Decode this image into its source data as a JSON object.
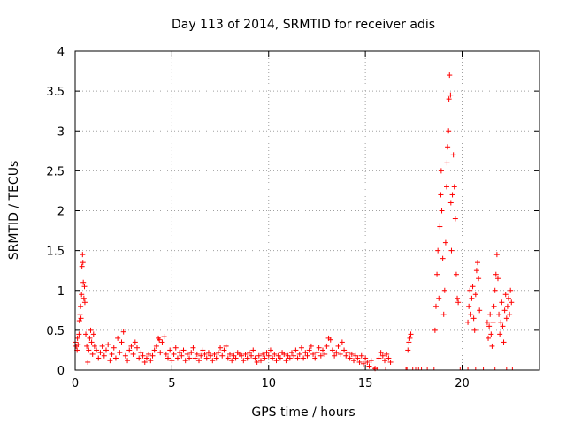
{
  "chart_data": {
    "type": "scatter",
    "title": "Day 113 of 2014, SRMTID for receiver adis",
    "xlabel": "GPS time / hours",
    "ylabel": "SRMTID / TECUs",
    "xlim": [
      0,
      24
    ],
    "ylim": [
      0,
      4
    ],
    "grid": true,
    "marker": "+",
    "x_ticks": [
      0,
      5,
      10,
      15,
      20
    ],
    "x_tick_labels": [
      "0",
      "5",
      "10",
      "15",
      "20"
    ],
    "y_ticks": [
      0,
      0.5,
      1,
      1.5,
      2,
      2.5,
      3,
      3.5,
      4
    ],
    "y_tick_labels": [
      "0",
      "0.5",
      "1",
      "1.5",
      "2",
      "2.5",
      "3",
      "3.5",
      "4"
    ],
    "series": [
      {
        "name": "SRMTID",
        "color": "#ff0000",
        "points": [
          [
            0.0,
            0.35
          ],
          [
            0.05,
            0.3
          ],
          [
            0.1,
            0.25
          ],
          [
            0.12,
            0.4
          ],
          [
            0.15,
            0.32
          ],
          [
            0.2,
            0.45
          ],
          [
            0.22,
            0.62
          ],
          [
            0.25,
            0.7
          ],
          [
            0.28,
            0.8
          ],
          [
            0.3,
            0.65
          ],
          [
            0.33,
            0.95
          ],
          [
            0.35,
            1.3
          ],
          [
            0.38,
            1.45
          ],
          [
            0.4,
            1.35
          ],
          [
            0.42,
            1.1
          ],
          [
            0.45,
            0.9
          ],
          [
            0.48,
            1.05
          ],
          [
            0.5,
            0.85
          ],
          [
            0.55,
            0.45
          ],
          [
            0.6,
            0.3
          ],
          [
            0.65,
            0.1
          ],
          [
            0.7,
            0.25
          ],
          [
            0.75,
            0.4
          ],
          [
            0.8,
            0.5
          ],
          [
            0.85,
            0.35
          ],
          [
            0.9,
            0.2
          ],
          [
            0.95,
            0.45
          ],
          [
            1.0,
            0.3
          ],
          [
            1.1,
            0.25
          ],
          [
            1.2,
            0.15
          ],
          [
            1.3,
            0.22
          ],
          [
            1.4,
            0.3
          ],
          [
            1.5,
            0.18
          ],
          [
            1.6,
            0.25
          ],
          [
            1.7,
            0.32
          ],
          [
            1.8,
            0.12
          ],
          [
            1.9,
            0.2
          ],
          [
            2.0,
            0.28
          ],
          [
            2.1,
            0.15
          ],
          [
            2.2,
            0.4
          ],
          [
            2.3,
            0.22
          ],
          [
            2.4,
            0.35
          ],
          [
            2.5,
            0.48
          ],
          [
            2.6,
            0.18
          ],
          [
            2.7,
            0.12
          ],
          [
            2.8,
            0.25
          ],
          [
            2.9,
            0.3
          ],
          [
            3.0,
            0.2
          ],
          [
            3.1,
            0.35
          ],
          [
            3.2,
            0.28
          ],
          [
            3.3,
            0.15
          ],
          [
            3.4,
            0.22
          ],
          [
            3.5,
            0.18
          ],
          [
            3.6,
            0.1
          ],
          [
            3.7,
            0.15
          ],
          [
            3.8,
            0.2
          ],
          [
            3.9,
            0.12
          ],
          [
            4.0,
            0.18
          ],
          [
            4.1,
            0.25
          ],
          [
            4.2,
            0.3
          ],
          [
            4.3,
            0.4
          ],
          [
            4.35,
            0.38
          ],
          [
            4.4,
            0.22
          ],
          [
            4.5,
            0.35
          ],
          [
            4.6,
            0.42
          ],
          [
            4.7,
            0.2
          ],
          [
            4.8,
            0.15
          ],
          [
            4.9,
            0.25
          ],
          [
            5.0,
            0.12
          ],
          [
            5.1,
            0.2
          ],
          [
            5.2,
            0.28
          ],
          [
            5.3,
            0.15
          ],
          [
            5.4,
            0.22
          ],
          [
            5.5,
            0.18
          ],
          [
            5.6,
            0.25
          ],
          [
            5.7,
            0.12
          ],
          [
            5.8,
            0.2
          ],
          [
            5.9,
            0.15
          ],
          [
            6.0,
            0.22
          ],
          [
            6.1,
            0.28
          ],
          [
            6.2,
            0.15
          ],
          [
            6.3,
            0.2
          ],
          [
            6.4,
            0.12
          ],
          [
            6.5,
            0.18
          ],
          [
            6.6,
            0.25
          ],
          [
            6.7,
            0.2
          ],
          [
            6.8,
            0.15
          ],
          [
            6.9,
            0.22
          ],
          [
            7.0,
            0.18
          ],
          [
            7.1,
            0.12
          ],
          [
            7.2,
            0.2
          ],
          [
            7.3,
            0.15
          ],
          [
            7.4,
            0.22
          ],
          [
            7.5,
            0.28
          ],
          [
            7.6,
            0.18
          ],
          [
            7.7,
            0.25
          ],
          [
            7.8,
            0.3
          ],
          [
            7.9,
            0.15
          ],
          [
            8.0,
            0.2
          ],
          [
            8.1,
            0.12
          ],
          [
            8.2,
            0.18
          ],
          [
            8.3,
            0.15
          ],
          [
            8.4,
            0.22
          ],
          [
            8.5,
            0.2
          ],
          [
            8.6,
            0.18
          ],
          [
            8.7,
            0.12
          ],
          [
            8.8,
            0.2
          ],
          [
            8.9,
            0.15
          ],
          [
            9.0,
            0.22
          ],
          [
            9.1,
            0.18
          ],
          [
            9.2,
            0.25
          ],
          [
            9.3,
            0.15
          ],
          [
            9.4,
            0.1
          ],
          [
            9.5,
            0.18
          ],
          [
            9.6,
            0.12
          ],
          [
            9.7,
            0.2
          ],
          [
            9.8,
            0.15
          ],
          [
            9.9,
            0.22
          ],
          [
            10.0,
            0.18
          ],
          [
            10.1,
            0.25
          ],
          [
            10.2,
            0.15
          ],
          [
            10.3,
            0.2
          ],
          [
            10.4,
            0.12
          ],
          [
            10.5,
            0.18
          ],
          [
            10.6,
            0.15
          ],
          [
            10.7,
            0.22
          ],
          [
            10.8,
            0.2
          ],
          [
            10.9,
            0.12
          ],
          [
            11.0,
            0.18
          ],
          [
            11.1,
            0.15
          ],
          [
            11.2,
            0.22
          ],
          [
            11.3,
            0.18
          ],
          [
            11.4,
            0.25
          ],
          [
            11.5,
            0.15
          ],
          [
            11.6,
            0.2
          ],
          [
            11.7,
            0.28
          ],
          [
            11.8,
            0.15
          ],
          [
            11.9,
            0.22
          ],
          [
            12.0,
            0.18
          ],
          [
            12.1,
            0.25
          ],
          [
            12.2,
            0.3
          ],
          [
            12.3,
            0.2
          ],
          [
            12.4,
            0.15
          ],
          [
            12.5,
            0.22
          ],
          [
            12.6,
            0.28
          ],
          [
            12.7,
            0.18
          ],
          [
            12.8,
            0.25
          ],
          [
            12.9,
            0.2
          ],
          [
            13.0,
            0.3
          ],
          [
            13.1,
            0.4
          ],
          [
            13.2,
            0.38
          ],
          [
            13.3,
            0.25
          ],
          [
            13.4,
            0.18
          ],
          [
            13.5,
            0.22
          ],
          [
            13.6,
            0.3
          ],
          [
            13.7,
            0.2
          ],
          [
            13.8,
            0.35
          ],
          [
            13.9,
            0.25
          ],
          [
            14.0,
            0.18
          ],
          [
            14.1,
            0.22
          ],
          [
            14.2,
            0.15
          ],
          [
            14.3,
            0.2
          ],
          [
            14.4,
            0.12
          ],
          [
            14.5,
            0.18
          ],
          [
            14.6,
            0.15
          ],
          [
            14.7,
            0.1
          ],
          [
            14.8,
            0.18
          ],
          [
            14.9,
            0.08
          ],
          [
            15.0,
            0.15
          ],
          [
            15.1,
            0.1
          ],
          [
            15.2,
            0.05
          ],
          [
            15.3,
            0.12
          ],
          [
            15.5,
            0.02
          ],
          [
            15.7,
            0.15
          ],
          [
            15.8,
            0.22
          ],
          [
            15.9,
            0.18
          ],
          [
            16.0,
            0.12
          ],
          [
            16.1,
            0.2
          ],
          [
            16.2,
            0.15
          ],
          [
            16.3,
            0.1
          ],
          [
            17.2,
            0.25
          ],
          [
            17.25,
            0.35
          ],
          [
            17.3,
            0.4
          ],
          [
            17.35,
            0.45
          ],
          [
            18.6,
            0.5
          ],
          [
            18.65,
            0.8
          ],
          [
            18.7,
            1.2
          ],
          [
            18.75,
            1.5
          ],
          [
            18.8,
            0.9
          ],
          [
            18.85,
            1.8
          ],
          [
            18.9,
            2.2
          ],
          [
            18.92,
            2.5
          ],
          [
            18.95,
            2.0
          ],
          [
            19.0,
            1.4
          ],
          [
            19.05,
            0.7
          ],
          [
            19.1,
            1.0
          ],
          [
            19.15,
            1.6
          ],
          [
            19.2,
            2.3
          ],
          [
            19.22,
            2.6
          ],
          [
            19.25,
            2.8
          ],
          [
            19.3,
            3.0
          ],
          [
            19.32,
            3.4
          ],
          [
            19.35,
            3.7
          ],
          [
            19.4,
            3.45
          ],
          [
            19.42,
            2.1
          ],
          [
            19.45,
            1.5
          ],
          [
            19.5,
            2.2
          ],
          [
            19.55,
            2.7
          ],
          [
            19.6,
            2.3
          ],
          [
            19.65,
            1.9
          ],
          [
            19.7,
            1.2
          ],
          [
            19.75,
            0.9
          ],
          [
            19.8,
            0.85
          ],
          [
            20.3,
            0.6
          ],
          [
            20.35,
            0.8
          ],
          [
            20.4,
            1.0
          ],
          [
            20.45,
            0.7
          ],
          [
            20.5,
            0.9
          ],
          [
            20.55,
            1.05
          ],
          [
            20.6,
            0.65
          ],
          [
            20.65,
            0.5
          ],
          [
            20.7,
            0.95
          ],
          [
            20.75,
            1.25
          ],
          [
            20.8,
            1.35
          ],
          [
            20.85,
            1.15
          ],
          [
            20.9,
            0.75
          ],
          [
            21.3,
            0.6
          ],
          [
            21.35,
            0.4
          ],
          [
            21.4,
            0.55
          ],
          [
            21.45,
            0.7
          ],
          [
            21.5,
            0.45
          ],
          [
            21.55,
            0.3
          ],
          [
            21.6,
            0.6
          ],
          [
            21.65,
            0.8
          ],
          [
            21.7,
            1.0
          ],
          [
            21.75,
            1.2
          ],
          [
            21.8,
            1.45
          ],
          [
            21.85,
            1.15
          ],
          [
            21.9,
            0.7
          ],
          [
            21.95,
            0.45
          ],
          [
            22.0,
            0.6
          ],
          [
            22.05,
            0.85
          ],
          [
            22.1,
            0.55
          ],
          [
            22.15,
            0.35
          ],
          [
            22.2,
            0.75
          ],
          [
            22.25,
            0.95
          ],
          [
            22.3,
            0.65
          ],
          [
            22.35,
            0.8
          ],
          [
            22.4,
            0.9
          ],
          [
            22.45,
            0.7
          ],
          [
            22.5,
            1.0
          ],
          [
            22.55,
            0.85
          ]
        ],
        "zero_points": [
          15.45,
          15.6,
          16.05,
          17.1,
          17.15,
          17.45,
          17.6,
          17.75,
          17.9,
          18.2,
          18.55,
          19.9,
          20.3,
          20.7,
          21.1,
          21.7,
          22.3,
          22.6
        ]
      }
    ]
  }
}
